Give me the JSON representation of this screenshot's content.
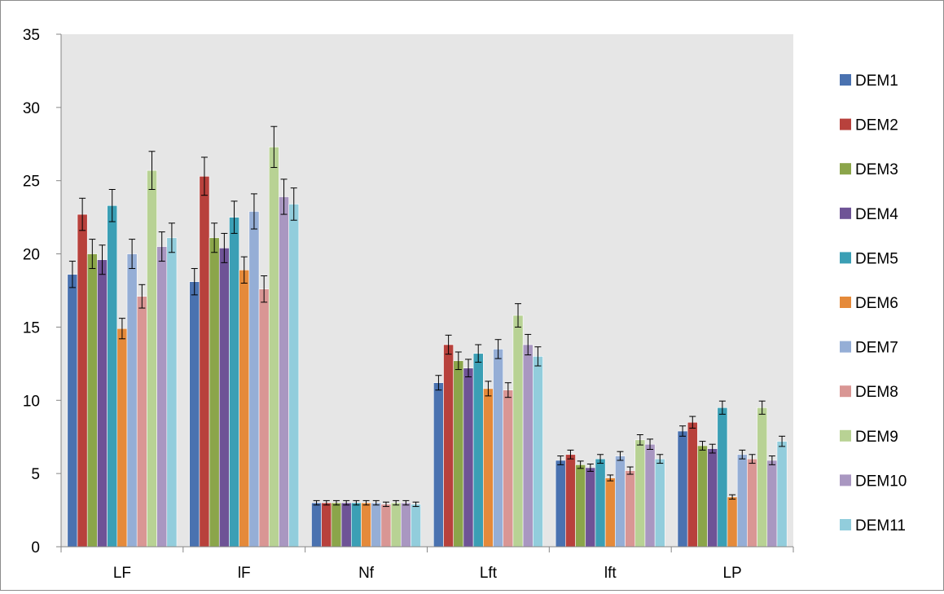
{
  "chart_data": {
    "type": "bar",
    "title": "",
    "xlabel": "",
    "ylabel": "",
    "ylim": [
      0,
      35
    ],
    "yticks": [
      0,
      5,
      10,
      15,
      20,
      25,
      30,
      35
    ],
    "grid": false,
    "plot_background": "#e6e6e6",
    "legend_position": "right",
    "categories": [
      "LF",
      "lF",
      "Nf",
      "Lft",
      "lft",
      "LP"
    ],
    "series": [
      {
        "name": "DEM1",
        "color": "#4a72b0",
        "values": [
          18.6,
          18.1,
          3.0,
          11.2,
          5.9,
          7.9
        ],
        "errors": [
          0.9,
          0.9,
          0.15,
          0.5,
          0.3,
          0.35
        ]
      },
      {
        "name": "DEM2",
        "color": "#b8413c",
        "values": [
          22.7,
          25.3,
          3.0,
          13.8,
          6.3,
          8.5
        ],
        "errors": [
          1.1,
          1.3,
          0.15,
          0.65,
          0.3,
          0.4
        ]
      },
      {
        "name": "DEM3",
        "color": "#8ba54a",
        "values": [
          20.0,
          21.1,
          3.0,
          12.7,
          5.6,
          6.9
        ],
        "errors": [
          1.0,
          1.0,
          0.15,
          0.6,
          0.25,
          0.3
        ]
      },
      {
        "name": "DEM4",
        "color": "#6e5396",
        "values": [
          19.6,
          20.4,
          3.0,
          12.2,
          5.4,
          6.7
        ],
        "errors": [
          1.0,
          1.0,
          0.15,
          0.6,
          0.25,
          0.3
        ]
      },
      {
        "name": "DEM5",
        "color": "#3b9fb5",
        "values": [
          23.3,
          22.5,
          3.0,
          13.2,
          6.0,
          9.5
        ],
        "errors": [
          1.1,
          1.1,
          0.15,
          0.6,
          0.3,
          0.45
        ]
      },
      {
        "name": "DEM6",
        "color": "#e58a3a",
        "values": [
          14.9,
          18.9,
          3.0,
          10.8,
          4.7,
          3.4
        ],
        "errors": [
          0.7,
          0.9,
          0.15,
          0.5,
          0.2,
          0.15
        ]
      },
      {
        "name": "DEM7",
        "color": "#95aed6",
        "values": [
          20.0,
          22.9,
          3.0,
          13.5,
          6.2,
          6.3
        ],
        "errors": [
          1.0,
          1.2,
          0.15,
          0.65,
          0.3,
          0.3
        ]
      },
      {
        "name": "DEM8",
        "color": "#d99694",
        "values": [
          17.1,
          17.6,
          2.9,
          10.7,
          5.2,
          6.0
        ],
        "errors": [
          0.8,
          0.9,
          0.15,
          0.5,
          0.25,
          0.3
        ]
      },
      {
        "name": "DEM9",
        "color": "#b8d294",
        "values": [
          25.7,
          27.3,
          3.0,
          15.8,
          7.3,
          9.5
        ],
        "errors": [
          1.3,
          1.4,
          0.15,
          0.8,
          0.35,
          0.45
        ]
      },
      {
        "name": "DEM10",
        "color": "#a997c1",
        "values": [
          20.5,
          23.9,
          3.0,
          13.8,
          7.0,
          5.9
        ],
        "errors": [
          1.0,
          1.2,
          0.15,
          0.7,
          0.35,
          0.3
        ]
      },
      {
        "name": "DEM11",
        "color": "#92cddc",
        "values": [
          21.1,
          23.4,
          2.9,
          13.0,
          6.0,
          7.2
        ],
        "errors": [
          1.0,
          1.1,
          0.15,
          0.65,
          0.3,
          0.35
        ]
      }
    ]
  }
}
